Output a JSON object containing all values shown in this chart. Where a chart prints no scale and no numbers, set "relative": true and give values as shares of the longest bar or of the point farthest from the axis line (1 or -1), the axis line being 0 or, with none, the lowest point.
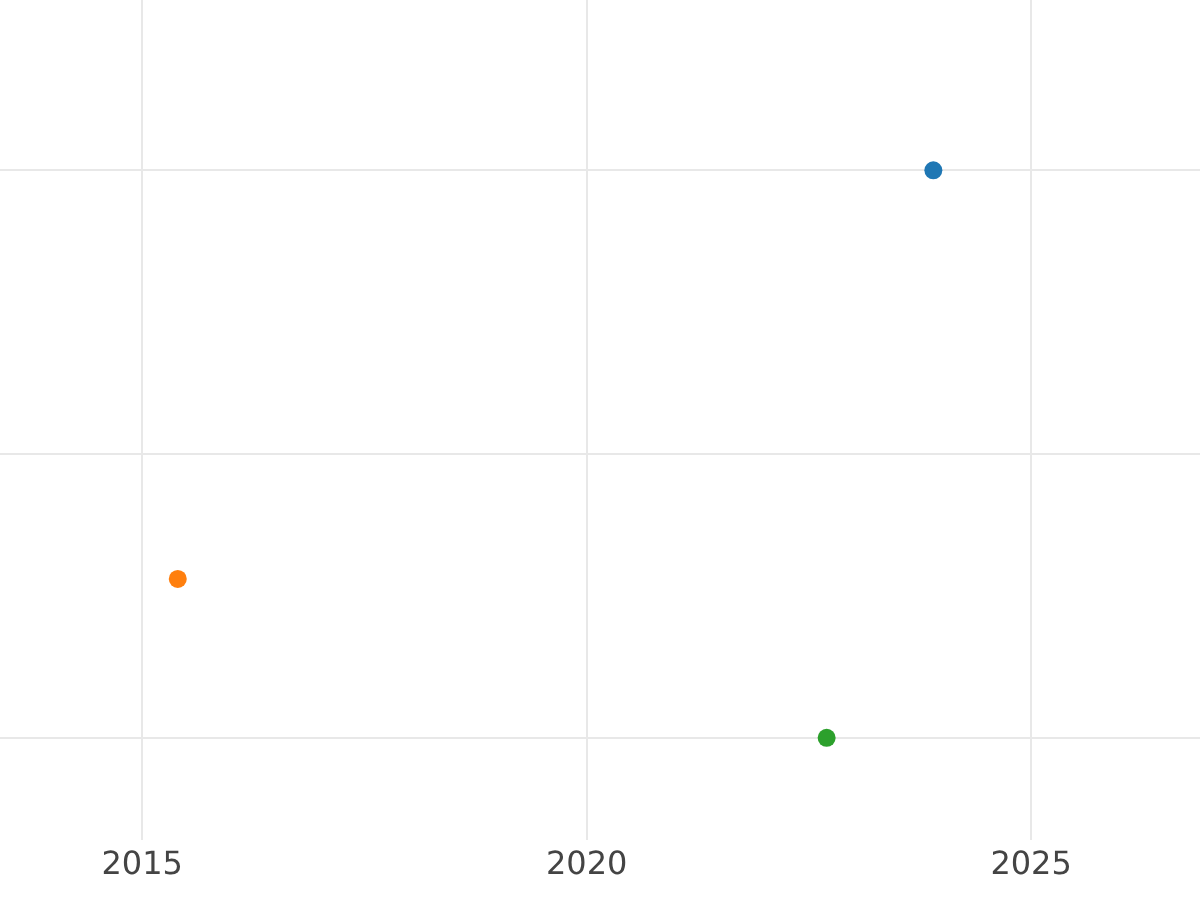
{
  "chart_data": {
    "type": "scatter",
    "relative": true,
    "x": [
      2023.9,
      2015.4,
      2022.7
    ],
    "values": [
      1,
      0.28,
      0
    ],
    "colors": [
      "#1f77b4",
      "#ff7f0e",
      "#2ca02c"
    ],
    "xlim": [
      2013.4,
      2026.9
    ],
    "xticks": [
      2015,
      2020,
      2025
    ],
    "grid": true,
    "marker": "circle"
  }
}
